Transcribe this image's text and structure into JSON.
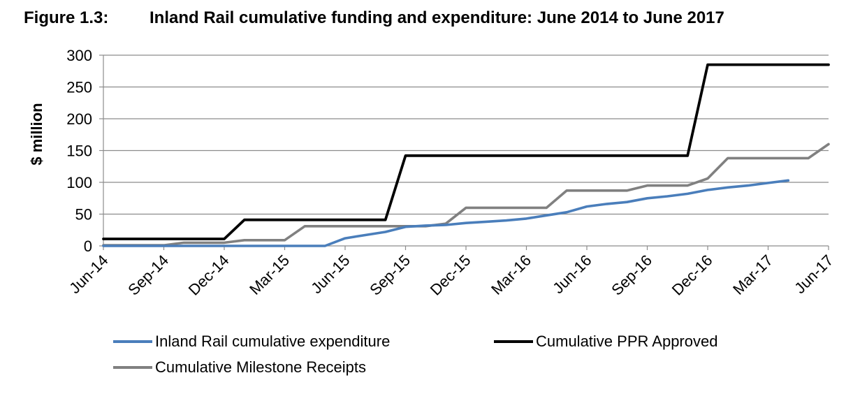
{
  "figure": {
    "number": "Figure 1.3:",
    "title": "Inland Rail cumulative funding and expenditure: June 2014 to June 2017"
  },
  "chart_data": {
    "type": "line",
    "title": "Inland Rail cumulative funding and expenditure: June 2014 to June 2017",
    "xlabel": "",
    "ylabel": "$ million",
    "ylim": [
      0,
      300
    ],
    "yticks": [
      0,
      50,
      100,
      150,
      200,
      250,
      300
    ],
    "x_tick_labels": [
      "Jun-14",
      "Sep-14",
      "Dec-14",
      "Mar-15",
      "Jun-15",
      "Sep-15",
      "Dec-15",
      "Mar-16",
      "Jun-16",
      "Sep-16",
      "Dec-16",
      "Mar-17",
      "Jun-17"
    ],
    "x_months": [
      "Jun-14",
      "Jul-14",
      "Aug-14",
      "Sep-14",
      "Oct-14",
      "Nov-14",
      "Dec-14",
      "Jan-15",
      "Feb-15",
      "Mar-15",
      "Apr-15",
      "May-15",
      "Jun-15",
      "Jul-15",
      "Aug-15",
      "Sep-15",
      "Oct-15",
      "Nov-15",
      "Dec-15",
      "Jan-16",
      "Feb-16",
      "Mar-16",
      "Apr-16",
      "May-16",
      "Jun-16",
      "Jul-16",
      "Aug-16",
      "Sep-16",
      "Oct-16",
      "Nov-16",
      "Dec-16",
      "Jan-17",
      "Feb-17",
      "Mar-17",
      "Apr-17",
      "May-17",
      "Jun-17"
    ],
    "grid": true,
    "legend_position": "bottom",
    "series": [
      {
        "name": "Inland Rail cumulative expenditure",
        "color": "#4a7ebb",
        "values": [
          0,
          0,
          0,
          0,
          0,
          0,
          0,
          0,
          0,
          0,
          0,
          0,
          12,
          17,
          22,
          30,
          32,
          33,
          36,
          38,
          40,
          43,
          48,
          53,
          62,
          66,
          69,
          75,
          78,
          82,
          88,
          92,
          95,
          99,
          103,
          null,
          null
        ]
      },
      {
        "name": "Cumulative PPR Approved",
        "color": "#000000",
        "values": [
          11,
          11,
          11,
          11,
          11,
          11,
          11,
          41,
          41,
          41,
          41,
          41,
          41,
          41,
          41,
          142,
          142,
          142,
          142,
          142,
          142,
          142,
          142,
          142,
          142,
          142,
          142,
          142,
          142,
          142,
          285,
          285,
          285,
          285,
          285,
          285,
          285
        ]
      },
      {
        "name": "Cumulative Milestone Receipts",
        "color": "#808080",
        "values": [
          1,
          1,
          1,
          1,
          5,
          5,
          5,
          9,
          9,
          9,
          31,
          31,
          31,
          31,
          31,
          31,
          31,
          35,
          60,
          60,
          60,
          60,
          60,
          87,
          87,
          87,
          87,
          95,
          95,
          95,
          106,
          138,
          138,
          138,
          138,
          138,
          160
        ]
      }
    ]
  }
}
